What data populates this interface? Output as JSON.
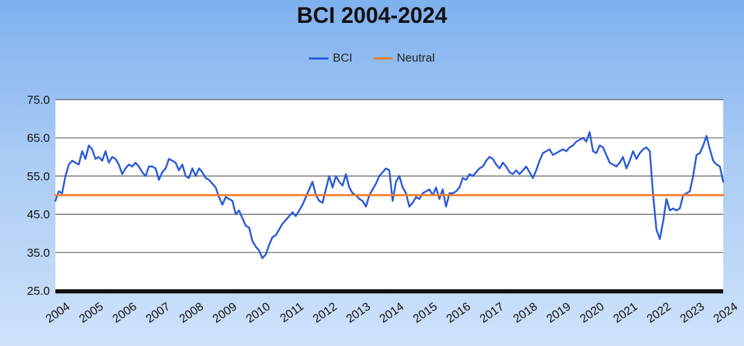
{
  "chart_data": {
    "type": "line",
    "title": "BCI 2004-2024",
    "xlabel": "",
    "ylabel": "",
    "ylim": [
      25,
      75
    ],
    "yticks": [
      "25.0",
      "35.0",
      "45.0",
      "55.0",
      "65.0",
      "75.0"
    ],
    "xticks": [
      "2004",
      "2005",
      "2006",
      "2007",
      "2008",
      "2009",
      "2010",
      "2011",
      "2012",
      "2013",
      "2014",
      "2015",
      "2016",
      "2017",
      "2018",
      "2019",
      "2020",
      "2021",
      "2022",
      "2023",
      "2024"
    ],
    "xlim": [
      2004,
      2024
    ],
    "grid": true,
    "legend_position": "top",
    "series": [
      {
        "name": "BCI",
        "color": "#2a5bd7",
        "points": [
          [
            2004.0,
            48.5
          ],
          [
            2004.1,
            51.0
          ],
          [
            2004.2,
            50.5
          ],
          [
            2004.3,
            55.0
          ],
          [
            2004.4,
            58.0
          ],
          [
            2004.5,
            59.0
          ],
          [
            2004.6,
            58.5
          ],
          [
            2004.7,
            58.0
          ],
          [
            2004.8,
            61.5
          ],
          [
            2004.9,
            59.5
          ],
          [
            2005.0,
            63.0
          ],
          [
            2005.1,
            62.0
          ],
          [
            2005.2,
            59.5
          ],
          [
            2005.3,
            60.0
          ],
          [
            2005.4,
            59.0
          ],
          [
            2005.5,
            61.5
          ],
          [
            2005.6,
            58.5
          ],
          [
            2005.7,
            60.0
          ],
          [
            2005.8,
            59.5
          ],
          [
            2005.9,
            58.0
          ],
          [
            2006.0,
            55.5
          ],
          [
            2006.1,
            57.0
          ],
          [
            2006.2,
            58.0
          ],
          [
            2006.3,
            57.5
          ],
          [
            2006.4,
            58.5
          ],
          [
            2006.5,
            57.5
          ],
          [
            2006.6,
            56.0
          ],
          [
            2006.7,
            55.0
          ],
          [
            2006.8,
            57.5
          ],
          [
            2006.9,
            57.5
          ],
          [
            2007.0,
            57.0
          ],
          [
            2007.1,
            54.0
          ],
          [
            2007.2,
            56.0
          ],
          [
            2007.3,
            57.0
          ],
          [
            2007.4,
            59.5
          ],
          [
            2007.5,
            59.0
          ],
          [
            2007.6,
            58.5
          ],
          [
            2007.7,
            56.5
          ],
          [
            2007.8,
            58.0
          ],
          [
            2007.9,
            55.0
          ],
          [
            2008.0,
            54.5
          ],
          [
            2008.1,
            57.0
          ],
          [
            2008.2,
            55.0
          ],
          [
            2008.3,
            57.0
          ],
          [
            2008.4,
            56.0
          ],
          [
            2008.5,
            54.5
          ],
          [
            2008.6,
            54.0
          ],
          [
            2008.7,
            53.0
          ],
          [
            2008.8,
            52.0
          ],
          [
            2008.9,
            49.5
          ],
          [
            2009.0,
            47.5
          ],
          [
            2009.1,
            49.5
          ],
          [
            2009.2,
            49.0
          ],
          [
            2009.3,
            48.5
          ],
          [
            2009.4,
            45.0
          ],
          [
            2009.5,
            46.0
          ],
          [
            2009.6,
            44.0
          ],
          [
            2009.7,
            42.0
          ],
          [
            2009.8,
            41.5
          ],
          [
            2009.9,
            38.0
          ],
          [
            2010.0,
            36.5
          ],
          [
            2010.1,
            35.5
          ],
          [
            2010.2,
            33.5
          ],
          [
            2010.3,
            34.5
          ],
          [
            2010.4,
            37.0
          ],
          [
            2010.5,
            39.0
          ],
          [
            2010.6,
            39.5
          ],
          [
            2010.7,
            41.0
          ],
          [
            2010.8,
            42.5
          ],
          [
            2010.9,
            43.5
          ],
          [
            2011.0,
            44.5
          ],
          [
            2011.1,
            45.5
          ],
          [
            2011.2,
            44.5
          ],
          [
            2011.3,
            46.0
          ],
          [
            2011.4,
            47.5
          ],
          [
            2011.5,
            49.5
          ],
          [
            2011.6,
            51.5
          ],
          [
            2011.7,
            53.5
          ],
          [
            2011.8,
            50.0
          ],
          [
            2011.9,
            48.5
          ],
          [
            2012.0,
            48.0
          ],
          [
            2012.1,
            51.5
          ],
          [
            2012.2,
            55.0
          ],
          [
            2012.3,
            52.0
          ],
          [
            2012.4,
            55.0
          ],
          [
            2012.5,
            53.5
          ],
          [
            2012.6,
            52.5
          ],
          [
            2012.7,
            55.5
          ],
          [
            2012.8,
            52.0
          ],
          [
            2012.9,
            50.5
          ],
          [
            2013.0,
            50.0
          ],
          [
            2013.1,
            49.0
          ],
          [
            2013.2,
            48.5
          ],
          [
            2013.3,
            47.0
          ],
          [
            2013.4,
            50.0
          ],
          [
            2013.5,
            51.5
          ],
          [
            2013.6,
            53.0
          ],
          [
            2013.7,
            55.0
          ],
          [
            2013.8,
            56.0
          ],
          [
            2013.9,
            57.0
          ],
          [
            2014.0,
            56.5
          ],
          [
            2014.1,
            48.5
          ],
          [
            2014.2,
            53.5
          ],
          [
            2014.3,
            55.0
          ],
          [
            2014.4,
            52.0
          ],
          [
            2014.5,
            50.5
          ],
          [
            2014.6,
            47.0
          ],
          [
            2014.7,
            48.0
          ],
          [
            2014.8,
            49.5
          ],
          [
            2014.9,
            49.0
          ],
          [
            2015.0,
            50.5
          ],
          [
            2015.1,
            51.0
          ],
          [
            2015.2,
            51.5
          ],
          [
            2015.3,
            50.0
          ],
          [
            2015.4,
            52.0
          ],
          [
            2015.5,
            49.0
          ],
          [
            2015.6,
            51.5
          ],
          [
            2015.7,
            47.0
          ],
          [
            2015.8,
            50.5
          ],
          [
            2015.9,
            50.5
          ],
          [
            2016.0,
            51.0
          ],
          [
            2016.1,
            52.0
          ],
          [
            2016.2,
            54.5
          ],
          [
            2016.3,
            54.0
          ],
          [
            2016.4,
            55.5
          ],
          [
            2016.5,
            55.0
          ],
          [
            2016.6,
            56.0
          ],
          [
            2016.7,
            57.0
          ],
          [
            2016.8,
            57.5
          ],
          [
            2016.9,
            59.0
          ],
          [
            2017.0,
            60.0
          ],
          [
            2017.1,
            59.5
          ],
          [
            2017.2,
            58.0
          ],
          [
            2017.3,
            57.0
          ],
          [
            2017.4,
            58.5
          ],
          [
            2017.5,
            57.5
          ],
          [
            2017.6,
            56.0
          ],
          [
            2017.7,
            55.5
          ],
          [
            2017.8,
            56.5
          ],
          [
            2017.9,
            55.5
          ],
          [
            2018.0,
            56.5
          ],
          [
            2018.1,
            57.5
          ],
          [
            2018.2,
            56.0
          ],
          [
            2018.3,
            54.5
          ],
          [
            2018.4,
            56.5
          ],
          [
            2018.5,
            59.0
          ],
          [
            2018.6,
            61.0
          ],
          [
            2018.7,
            61.5
          ],
          [
            2018.8,
            62.0
          ],
          [
            2018.9,
            60.5
          ],
          [
            2019.0,
            61.0
          ],
          [
            2019.1,
            61.5
          ],
          [
            2019.2,
            62.0
          ],
          [
            2019.3,
            61.5
          ],
          [
            2019.4,
            62.5
          ],
          [
            2019.5,
            63.0
          ],
          [
            2019.6,
            64.0
          ],
          [
            2019.7,
            64.5
          ],
          [
            2019.8,
            65.0
          ],
          [
            2019.9,
            64.0
          ],
          [
            2020.0,
            66.5
          ],
          [
            2020.1,
            61.5
          ],
          [
            2020.2,
            61.0
          ],
          [
            2020.3,
            63.0
          ],
          [
            2020.4,
            62.5
          ],
          [
            2020.5,
            60.5
          ],
          [
            2020.6,
            58.5
          ],
          [
            2020.7,
            58.0
          ],
          [
            2020.8,
            57.5
          ],
          [
            2020.9,
            58.5
          ],
          [
            2021.0,
            60.0
          ],
          [
            2021.1,
            57.0
          ],
          [
            2021.2,
            59.0
          ],
          [
            2021.3,
            61.5
          ],
          [
            2021.4,
            59.5
          ],
          [
            2021.5,
            61.0
          ],
          [
            2021.6,
            62.0
          ],
          [
            2021.7,
            62.5
          ],
          [
            2021.8,
            61.5
          ],
          [
            2021.9,
            50.0
          ],
          [
            2022.0,
            41.0
          ],
          [
            2022.1,
            38.5
          ],
          [
            2022.2,
            43.0
          ],
          [
            2022.3,
            49.0
          ],
          [
            2022.4,
            46.0
          ],
          [
            2022.5,
            46.5
          ],
          [
            2022.6,
            46.0
          ],
          [
            2022.7,
            46.5
          ],
          [
            2022.8,
            50.0
          ],
          [
            2022.9,
            50.5
          ],
          [
            2023.0,
            51.0
          ],
          [
            2023.1,
            55.0
          ],
          [
            2023.2,
            60.5
          ],
          [
            2023.3,
            61.0
          ],
          [
            2023.4,
            63.0
          ],
          [
            2023.5,
            65.5
          ],
          [
            2023.6,
            62.0
          ],
          [
            2023.7,
            59.0
          ],
          [
            2023.8,
            58.0
          ],
          [
            2023.9,
            57.5
          ],
          [
            2024.0,
            53.5
          ]
        ]
      },
      {
        "name": "Neutral",
        "color": "#f07c2a",
        "points": [
          [
            2004.0,
            50.0
          ],
          [
            2024.0,
            50.0
          ]
        ]
      }
    ]
  }
}
